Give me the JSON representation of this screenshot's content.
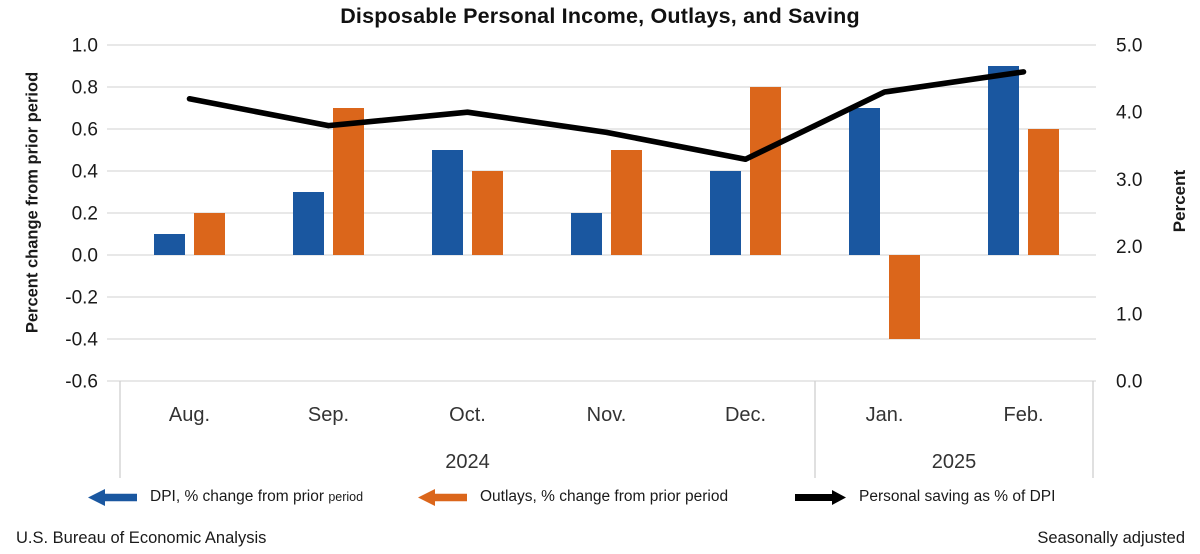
{
  "title": "Disposable Personal Income, Outlays, and Saving",
  "footer": {
    "left": "U.S. Bureau of Economic Analysis",
    "right": "Seasonally adjusted"
  },
  "colors": {
    "dpi_blue": "#1A57A0",
    "outlays_orange": "#DB661B",
    "saving_black": "#000000",
    "grid": "#D9D9D9",
    "box": "#CFCFCF",
    "axis_text": "#1A1A1A",
    "label_text": "#333333"
  },
  "legend": [
    {
      "key": "dpi",
      "label": "DPI, % change from prior",
      "label_small": "period",
      "color": "#1A57A0",
      "arrow": "left"
    },
    {
      "key": "outlays",
      "label": "Outlays, % change from prior period",
      "label_small": "",
      "color": "#DB661B",
      "arrow": "left"
    },
    {
      "key": "saving",
      "label": "Personal saving as % of DPI",
      "label_small": "",
      "color": "#000000",
      "arrow": "right"
    }
  ],
  "chart_data": {
    "type": "bar",
    "subtype": "grouped bars + line overlay",
    "categories": [
      "Aug.",
      "Sep.",
      "Oct.",
      "Nov.",
      "Dec.",
      "Jan.",
      "Feb."
    ],
    "year_groups": [
      {
        "label": "2024",
        "span": [
          0,
          4
        ]
      },
      {
        "label": "2025",
        "span": [
          5,
          6
        ]
      }
    ],
    "series": [
      {
        "key": "dpi",
        "name": "DPI, % change from prior period",
        "type": "bar",
        "axis": "left",
        "color": "#1A57A0",
        "values": [
          0.1,
          0.3,
          0.5,
          0.2,
          0.4,
          0.7,
          0.9
        ]
      },
      {
        "key": "outlays",
        "name": "Outlays, % change from prior period",
        "type": "bar",
        "axis": "left",
        "color": "#DB661B",
        "values": [
          0.2,
          0.7,
          0.4,
          0.5,
          0.8,
          -0.4,
          0.6
        ]
      },
      {
        "key": "saving",
        "name": "Personal saving as % of DPI",
        "type": "line",
        "axis": "right",
        "color": "#000000",
        "values": [
          4.2,
          3.8,
          4.0,
          3.7,
          3.3,
          4.3,
          4.6
        ]
      }
    ],
    "left_axis": {
      "label": "Percent change from prior period",
      "min": -0.6,
      "max": 1.0,
      "ticks": [
        1.0,
        0.8,
        0.6,
        0.4,
        0.2,
        0.0,
        -0.2,
        -0.4,
        -0.6
      ]
    },
    "right_axis": {
      "label": "Percent",
      "min": 0.0,
      "max": 5.0,
      "ticks": [
        5.0,
        4.0,
        3.0,
        2.0,
        1.0,
        0.0
      ]
    },
    "grid": true,
    "legend_position": "bottom"
  }
}
